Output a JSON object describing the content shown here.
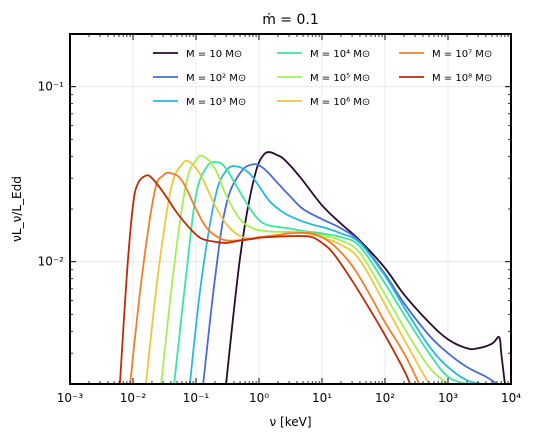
{
  "chart_data": {
    "type": "line",
    "title": "ṁ = 0.1",
    "xlabel": "ν [keV]",
    "ylabel": "νL_ν/L_Edd",
    "xscale": "log",
    "yscale": "log",
    "xlim": [
      0.001,
      10000
    ],
    "ylim": [
      0.002,
      0.2
    ],
    "grid": true,
    "legend_position": "top",
    "xticks": [
      {
        "value": 0.001,
        "label": "10⁻³"
      },
      {
        "value": 0.01,
        "label": "10⁻²"
      },
      {
        "value": 0.1,
        "label": "10⁻¹"
      },
      {
        "value": 1,
        "label": "10⁰"
      },
      {
        "value": 10,
        "label": "10¹"
      },
      {
        "value": 100,
        "label": "10²"
      },
      {
        "value": 1000,
        "label": "10³"
      },
      {
        "value": 10000,
        "label": "10⁴"
      }
    ],
    "yticks": [
      {
        "value": 0.01,
        "label": "10⁻²"
      },
      {
        "value": 0.1,
        "label": "10⁻¹"
      }
    ],
    "series": [
      {
        "name": "M = 10 M⊙",
        "color": "#2a0a2e",
        "x": [
          0.3,
          0.5,
          0.8,
          1.2,
          2,
          3,
          5,
          10,
          20,
          40,
          100,
          200,
          500,
          1000,
          2000,
          3000,
          5000,
          6500,
          7000,
          8000
        ],
        "y": [
          0.002,
          0.0105,
          0.028,
          0.041,
          0.0405,
          0.036,
          0.029,
          0.021,
          0.0165,
          0.0132,
          0.0092,
          0.0065,
          0.0045,
          0.0036,
          0.0032,
          0.0032,
          0.0034,
          0.0037,
          0.003,
          0.002
        ]
      },
      {
        "name": "M = 10² M⊙",
        "color": "#4a6ad8",
        "x": [
          0.13,
          0.2,
          0.3,
          0.5,
          0.8,
          1.2,
          2,
          3,
          5,
          10,
          20,
          40,
          100,
          200,
          500,
          1000,
          2000,
          4000,
          6000
        ],
        "y": [
          0.002,
          0.008,
          0.021,
          0.032,
          0.036,
          0.034,
          0.028,
          0.024,
          0.02,
          0.0175,
          0.0155,
          0.013,
          0.0085,
          0.0058,
          0.0038,
          0.003,
          0.0025,
          0.0022,
          0.002
        ]
      },
      {
        "name": "M = 10³ M⊙",
        "color": "#28b8dc",
        "x": [
          0.08,
          0.12,
          0.2,
          0.3,
          0.45,
          0.7,
          1,
          1.5,
          2.5,
          4,
          7,
          12,
          20,
          40,
          100,
          200,
          500,
          1000,
          2000,
          3500
        ],
        "y": [
          0.002,
          0.0075,
          0.023,
          0.033,
          0.035,
          0.032,
          0.027,
          0.022,
          0.019,
          0.0175,
          0.0163,
          0.0155,
          0.0145,
          0.0128,
          0.0083,
          0.0055,
          0.0033,
          0.0025,
          0.0021,
          0.002
        ]
      },
      {
        "name": "M = 10⁴ M⊙",
        "color": "#38e6a0",
        "x": [
          0.045,
          0.07,
          0.1,
          0.15,
          0.22,
          0.3,
          0.5,
          0.8,
          1.2,
          2,
          3,
          5,
          10,
          20,
          40,
          100,
          200,
          500,
          1000,
          2000
        ],
        "y": [
          0.002,
          0.0085,
          0.024,
          0.035,
          0.037,
          0.034,
          0.025,
          0.019,
          0.0165,
          0.0158,
          0.0155,
          0.015,
          0.0145,
          0.0138,
          0.0122,
          0.0075,
          0.005,
          0.003,
          0.0022,
          0.002
        ]
      },
      {
        "name": "M = 10⁵ M⊙",
        "color": "#a4f050",
        "x": [
          0.028,
          0.045,
          0.07,
          0.1,
          0.13,
          0.2,
          0.3,
          0.5,
          0.8,
          1.2,
          2,
          3,
          5,
          10,
          20,
          40,
          100,
          200,
          500,
          1000
        ],
        "y": [
          0.002,
          0.0095,
          0.028,
          0.038,
          0.04,
          0.034,
          0.024,
          0.0175,
          0.0155,
          0.015,
          0.0148,
          0.0148,
          0.0148,
          0.0142,
          0.0132,
          0.0112,
          0.0065,
          0.0042,
          0.0025,
          0.002
        ]
      },
      {
        "name": "M = 10⁶ M⊙",
        "color": "#ecc83a",
        "x": [
          0.016,
          0.025,
          0.04,
          0.06,
          0.08,
          0.12,
          0.2,
          0.3,
          0.5,
          0.8,
          1.2,
          2,
          3,
          5,
          10,
          20,
          40,
          100,
          200,
          500
        ],
        "y": [
          0.002,
          0.0085,
          0.026,
          0.036,
          0.037,
          0.031,
          0.021,
          0.0165,
          0.014,
          0.0136,
          0.0138,
          0.0142,
          0.0146,
          0.0146,
          0.0138,
          0.0125,
          0.0102,
          0.0057,
          0.0036,
          0.002
        ]
      },
      {
        "name": "M = 10⁷ M⊙",
        "color": "#f07f28",
        "x": [
          0.009,
          0.014,
          0.022,
          0.03,
          0.04,
          0.06,
          0.1,
          0.15,
          0.25,
          0.4,
          0.7,
          1,
          2,
          3,
          5,
          8,
          15,
          30,
          60,
          100,
          200,
          350
        ],
        "y": [
          0.002,
          0.0085,
          0.025,
          0.031,
          0.032,
          0.029,
          0.02,
          0.0155,
          0.0135,
          0.0132,
          0.0135,
          0.0138,
          0.0142,
          0.0145,
          0.0146,
          0.0143,
          0.0125,
          0.0095,
          0.0063,
          0.0045,
          0.003,
          0.002
        ]
      },
      {
        "name": "M = 10⁸ M⊙",
        "color": "#c02a04",
        "x": [
          0.0062,
          0.008,
          0.01,
          0.012,
          0.016,
          0.02,
          0.03,
          0.05,
          0.08,
          0.12,
          0.2,
          0.3,
          0.5,
          0.8,
          1,
          2,
          3,
          5,
          7,
          10,
          15,
          30,
          60,
          100,
          200,
          250
        ],
        "y": [
          0.002,
          0.0085,
          0.021,
          0.028,
          0.031,
          0.03,
          0.025,
          0.019,
          0.0155,
          0.0136,
          0.013,
          0.0128,
          0.0132,
          0.0135,
          0.0137,
          0.0139,
          0.014,
          0.014,
          0.0138,
          0.0128,
          0.0112,
          0.0078,
          0.0052,
          0.0038,
          0.0024,
          0.002
        ]
      }
    ]
  }
}
